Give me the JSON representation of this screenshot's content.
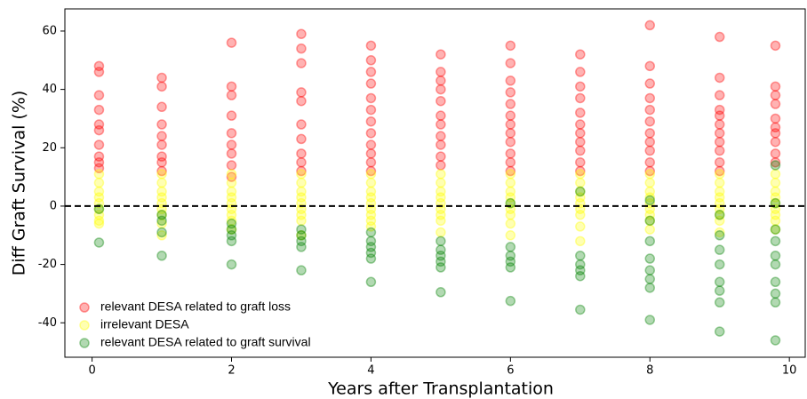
{
  "chart_data": {
    "type": "scatter",
    "x_label": "Years after Transplantation",
    "y_label": "Diff Graft Survival (%)",
    "xlim": [
      -0.39,
      10.24
    ],
    "ylim": [
      -51.8,
      67.6
    ],
    "xticks": [
      0,
      2,
      4,
      6,
      8,
      10
    ],
    "yticks": [
      -40,
      -20,
      0,
      20,
      40,
      60
    ],
    "hline": 0,
    "legend": "lower left",
    "marker_opacity": 0.3,
    "series": [
      {
        "name": "relevant DESA related to graft loss",
        "color": "#ff0000",
        "x": [
          0.1,
          0.1,
          0.1,
          0.1,
          0.1,
          0.1,
          0.1,
          0.1,
          0.1,
          0.1,
          1,
          1,
          1,
          1,
          1,
          1,
          1,
          1,
          1,
          2,
          2,
          2,
          2,
          2,
          2,
          2,
          2,
          2,
          3,
          3,
          3,
          3,
          3,
          3,
          3,
          3,
          3,
          3,
          4,
          4,
          4,
          4,
          4,
          4,
          4,
          4,
          4,
          4,
          4,
          4,
          5,
          5,
          5,
          5,
          5,
          5,
          5,
          5,
          5,
          5,
          5,
          6,
          6,
          6,
          6,
          6,
          6,
          6,
          6,
          6,
          6,
          6,
          6,
          7,
          7,
          7,
          7,
          7,
          7,
          7,
          7,
          7,
          7,
          7,
          8,
          8,
          8,
          8,
          8,
          8,
          8,
          8,
          8,
          8,
          8,
          9,
          9,
          9,
          9,
          9,
          9,
          9,
          9,
          9,
          9,
          9,
          9.8,
          9.8,
          9.8,
          9.8,
          9.8,
          9.8,
          9.8,
          9.8,
          9.8,
          9.8
        ],
        "values": [
          48,
          46,
          38,
          33,
          28,
          26,
          21,
          17,
          15,
          13,
          44,
          41,
          34,
          28,
          24,
          21,
          17,
          15,
          12,
          56,
          41,
          38,
          31,
          25,
          21,
          18,
          14,
          10,
          59,
          54,
          49,
          39,
          36,
          28,
          23,
          18,
          15,
          12,
          55,
          50,
          46,
          42,
          37,
          33,
          29,
          25,
          21,
          18,
          15,
          12,
          52,
          46,
          43,
          40,
          36,
          31,
          28,
          24,
          21,
          17,
          14,
          55,
          49,
          43,
          39,
          35,
          31,
          28,
          25,
          22,
          18,
          15,
          12,
          52,
          46,
          41,
          37,
          32,
          28,
          25,
          22,
          19,
          15,
          12,
          62,
          48,
          42,
          37,
          33,
          29,
          25,
          22,
          19,
          15,
          12,
          58,
          44,
          38,
          33,
          31,
          28,
          25,
          22,
          19,
          15,
          12,
          55,
          41,
          38,
          35,
          30,
          27,
          25,
          22,
          18,
          15
        ]
      },
      {
        "name": "irrelevant DESA",
        "color": "#ffff00",
        "x": [
          0.1,
          0.1,
          0.1,
          0.1,
          0.1,
          0.1,
          0.1,
          0.1,
          0.1,
          1,
          1,
          1,
          1,
          1,
          1,
          1,
          1,
          1,
          2,
          2,
          2,
          2,
          2,
          2,
          2,
          2,
          2,
          3,
          3,
          3,
          3,
          3,
          3,
          3,
          3,
          3,
          4,
          4,
          4,
          4,
          4,
          4,
          4,
          4,
          4,
          5,
          5,
          5,
          5,
          5,
          5,
          5,
          5,
          5,
          6,
          6,
          6,
          6,
          6,
          6,
          6,
          6,
          6,
          7,
          7,
          7,
          7,
          7,
          7,
          7,
          7,
          7,
          8,
          8,
          8,
          8,
          8,
          8,
          8,
          8,
          8,
          9,
          9,
          9,
          9,
          9,
          9,
          9,
          9,
          9,
          9.8,
          9.8,
          9.8,
          9.8,
          9.8,
          9.8,
          9.8,
          9.8,
          9.8
        ],
        "values": [
          11,
          8,
          5,
          3,
          1,
          -1,
          -3,
          -5,
          -6,
          11,
          8,
          5,
          3,
          1,
          -1,
          -3,
          -6,
          -10,
          11,
          8,
          5,
          3,
          1,
          -1,
          -3,
          -5,
          -8,
          11,
          8,
          5,
          3,
          1,
          -1,
          -3,
          -5,
          -10,
          11,
          8,
          5,
          3,
          1,
          -1,
          -3,
          -5,
          -7,
          11,
          8,
          5,
          3,
          1,
          -1,
          -3,
          -5,
          -9,
          11,
          8,
          5,
          3,
          1,
          -1,
          -3,
          -6,
          -10,
          11,
          8,
          5,
          3,
          1,
          -1,
          -3,
          -7,
          -12,
          11,
          8,
          5,
          3,
          1,
          -1,
          -3,
          -5,
          -8,
          11,
          8,
          5,
          3,
          1,
          -1,
          -3,
          -5,
          -9,
          11,
          8,
          5,
          3,
          1,
          -1,
          -3,
          -5,
          -8
        ]
      },
      {
        "name": "relevant DESA related to graft survival",
        "color": "#008000",
        "x": [
          0.1,
          0.1,
          1,
          1,
          1,
          1,
          2,
          2,
          2,
          2,
          2,
          3,
          3,
          3,
          3,
          3,
          4,
          4,
          4,
          4,
          4,
          4,
          5,
          5,
          5,
          5,
          5,
          5,
          6,
          6,
          6,
          6,
          6,
          6,
          7,
          7,
          7,
          7,
          7,
          7,
          8,
          8,
          8,
          8,
          8,
          8,
          8,
          8,
          9,
          9,
          9,
          9,
          9,
          9,
          9,
          9,
          9.8,
          9.8,
          9.8,
          9.8,
          9.8,
          9.8,
          9.8,
          9.8,
          9.8,
          9.8
        ],
        "values": [
          -1,
          -12.5,
          -3,
          -5,
          -9,
          -17,
          -6,
          -8,
          -10,
          -12,
          -20,
          -8,
          -10,
          -12,
          -14,
          -22,
          -9,
          -12,
          -14,
          -16,
          -18,
          -26,
          -12,
          -15,
          -17,
          -19,
          -21,
          -29.5,
          1,
          -14,
          -17,
          -19,
          -21,
          -32.5,
          5,
          -17,
          -20,
          -22,
          -24,
          -35.5,
          2,
          -5,
          -12,
          -18,
          -22,
          -25,
          -28,
          -39,
          -3,
          -10,
          -15,
          -20,
          -26,
          -29,
          -33,
          -43,
          14,
          1,
          -8,
          -12,
          -17,
          -20,
          -26,
          -30,
          -33,
          -46
        ]
      }
    ]
  }
}
